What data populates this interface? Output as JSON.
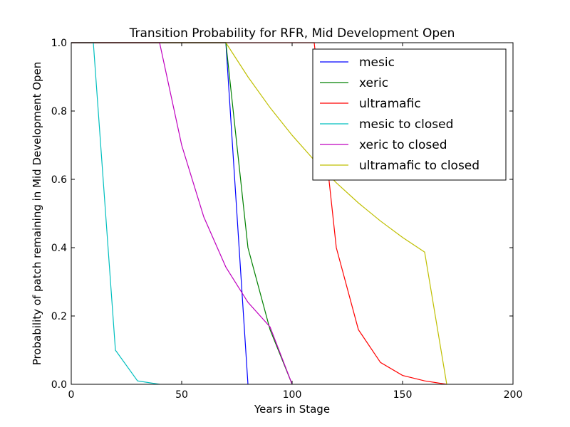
{
  "chart_data": {
    "type": "line",
    "title": "Transition Probability for RFR, Mid Development Open",
    "xlabel": "Years in Stage",
    "ylabel": "Probability of patch remaining in Mid Development Open",
    "xlim": [
      0,
      200
    ],
    "ylim": [
      0,
      1
    ],
    "xticks": [
      0,
      50,
      100,
      150,
      200
    ],
    "yticks": [
      0.0,
      0.2,
      0.4,
      0.6,
      0.8,
      1.0
    ],
    "xtick_labels": [
      "0",
      "50",
      "100",
      "150",
      "200"
    ],
    "ytick_labels": [
      "0.0",
      "0.2",
      "0.4",
      "0.6",
      "0.8",
      "1.0"
    ],
    "grid": false,
    "legend_position": "top-right",
    "series": [
      {
        "name": "mesic",
        "color": "#0000ff",
        "x": [
          0,
          10,
          20,
          30,
          40,
          50,
          60,
          70,
          80
        ],
        "y": [
          1,
          1,
          1,
          1,
          1,
          1,
          1,
          1,
          0
        ]
      },
      {
        "name": "xeric",
        "color": "#008000",
        "x": [
          0,
          10,
          20,
          30,
          40,
          50,
          60,
          70,
          80,
          90,
          100
        ],
        "y": [
          1,
          1,
          1,
          1,
          1,
          1,
          1,
          1,
          0.4,
          0.16,
          0
        ]
      },
      {
        "name": "ultramafic",
        "color": "#ff0000",
        "x": [
          0,
          10,
          20,
          30,
          40,
          50,
          60,
          70,
          80,
          90,
          100,
          110,
          120,
          130,
          140,
          150,
          160,
          170
        ],
        "y": [
          1,
          1,
          1,
          1,
          1,
          1,
          1,
          1,
          1,
          1,
          1,
          1,
          0.4,
          0.16,
          0.064,
          0.026,
          0.01,
          0
        ]
      },
      {
        "name": "mesic to closed",
        "color": "#00bfbf",
        "x": [
          0,
          10,
          20,
          30,
          40
        ],
        "y": [
          1,
          1,
          0.1,
          0.01,
          0
        ]
      },
      {
        "name": "xeric to closed",
        "color": "#bf00bf",
        "x": [
          0,
          10,
          20,
          30,
          40,
          50,
          60,
          70,
          80,
          90,
          100
        ],
        "y": [
          1,
          1,
          1,
          1,
          1,
          0.7,
          0.49,
          0.343,
          0.24,
          0.168,
          0
        ]
      },
      {
        "name": "ultramafic to closed",
        "color": "#bfbf00",
        "x": [
          0,
          10,
          20,
          30,
          40,
          50,
          60,
          70,
          80,
          90,
          100,
          110,
          120,
          130,
          140,
          150,
          160,
          170
        ],
        "y": [
          1,
          1,
          1,
          1,
          1,
          1,
          1,
          1,
          0.9,
          0.81,
          0.729,
          0.656,
          0.59,
          0.531,
          0.478,
          0.43,
          0.387,
          0
        ]
      }
    ]
  }
}
